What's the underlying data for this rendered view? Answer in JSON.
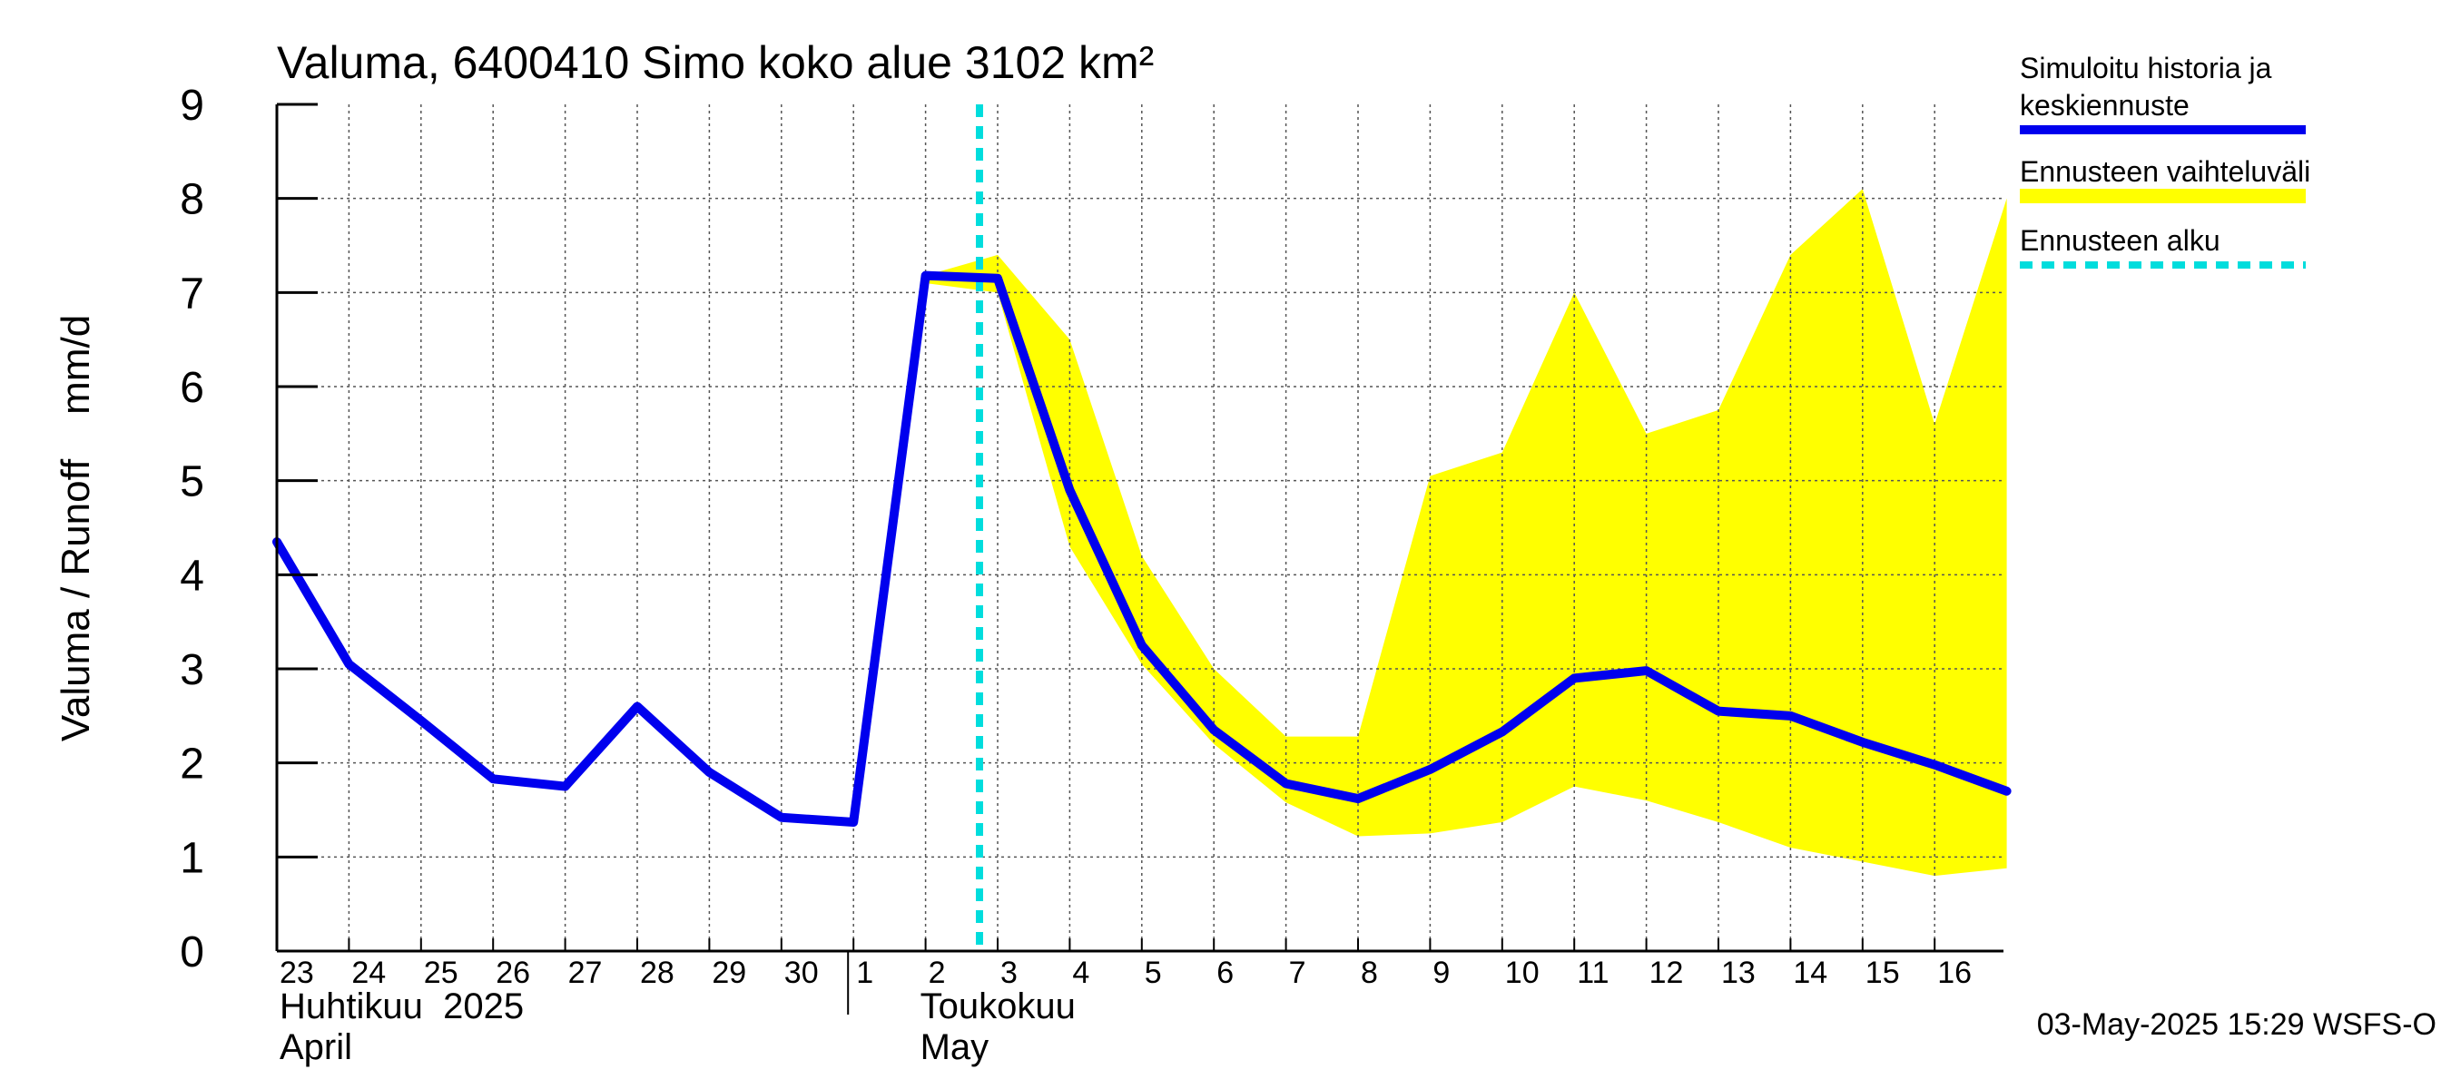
{
  "chart_data": {
    "type": "line",
    "title": "Valuma, 6400410 Simo koko alue 3102 km²",
    "ylabel": "Valuma / Runoff    mm/d",
    "ylim": [
      0,
      9
    ],
    "yticks": [
      "0",
      "1",
      "2",
      "3",
      "4",
      "5",
      "6",
      "7",
      "8",
      "9"
    ],
    "x_start": "2025-04-23",
    "x_end": "2025-05-17",
    "day_labels": [
      "23",
      "24",
      "25",
      "26",
      "27",
      "28",
      "29",
      "30",
      "1",
      "2",
      "3",
      "4",
      "5",
      "6",
      "7",
      "8",
      "9",
      "10",
      "11",
      "12",
      "13",
      "14",
      "15",
      "16"
    ],
    "month_labels": [
      {
        "fi": "Huhtikuu  2025",
        "en": "April",
        "date": "2025-04-23"
      },
      {
        "fi": "Toukokuu",
        "en": "May",
        "date": "2025-05-02"
      }
    ],
    "month_boundary": "2025-05-01",
    "forecast_start": "2025-05-03",
    "series": [
      {
        "name": "Simuloitu historia ja keskiennuste",
        "color": "#0000ee",
        "x": [
          "2025-04-23",
          "2025-04-24",
          "2025-04-25",
          "2025-04-26",
          "2025-04-27",
          "2025-04-28",
          "2025-04-29",
          "2025-04-30",
          "2025-05-01",
          "2025-05-02",
          "2025-05-03",
          "2025-05-04",
          "2025-05-05",
          "2025-05-06",
          "2025-05-07",
          "2025-05-08",
          "2025-05-09",
          "2025-05-10",
          "2025-05-11",
          "2025-05-12",
          "2025-05-13",
          "2025-05-14",
          "2025-05-15",
          "2025-05-16",
          "2025-05-17"
        ],
        "values": [
          4.35,
          3.05,
          2.45,
          1.83,
          1.75,
          2.6,
          1.9,
          1.42,
          1.37,
          7.18,
          7.15,
          4.9,
          3.25,
          2.35,
          1.78,
          1.62,
          1.93,
          2.33,
          2.9,
          2.98,
          2.55,
          2.5,
          2.22,
          1.98,
          1.7
        ]
      }
    ],
    "band": {
      "name": "Ennusteen vaihteluväli",
      "color": "#ffff00",
      "x": [
        "2025-05-02",
        "2025-05-03",
        "2025-05-04",
        "2025-05-05",
        "2025-05-06",
        "2025-05-07",
        "2025-05-08",
        "2025-05-09",
        "2025-05-10",
        "2025-05-11",
        "2025-05-12",
        "2025-05-13",
        "2025-05-14",
        "2025-05-15",
        "2025-05-16",
        "2025-05-17"
      ],
      "upper": [
        7.18,
        7.4,
        6.5,
        4.2,
        3.0,
        2.28,
        2.28,
        5.05,
        5.3,
        7.0,
        5.5,
        5.75,
        7.4,
        8.1,
        5.6,
        8.0
      ],
      "lower": [
        7.1,
        7.0,
        4.3,
        3.05,
        2.2,
        1.58,
        1.22,
        1.25,
        1.37,
        1.75,
        1.6,
        1.37,
        1.1,
        0.95,
        0.8,
        0.88
      ]
    },
    "forecast_marker": {
      "name": "Ennusteen alku",
      "color": "#00dddd"
    },
    "legend_position": "right",
    "grid": true
  },
  "legend": {
    "main_line1": "Simuloitu historia ja",
    "main_line2": "keskiennuste",
    "band": "Ennusteen vaihteluväli",
    "marker": "Ennusteen alku"
  },
  "footer": "03-May-2025 15:29 WSFS-O"
}
